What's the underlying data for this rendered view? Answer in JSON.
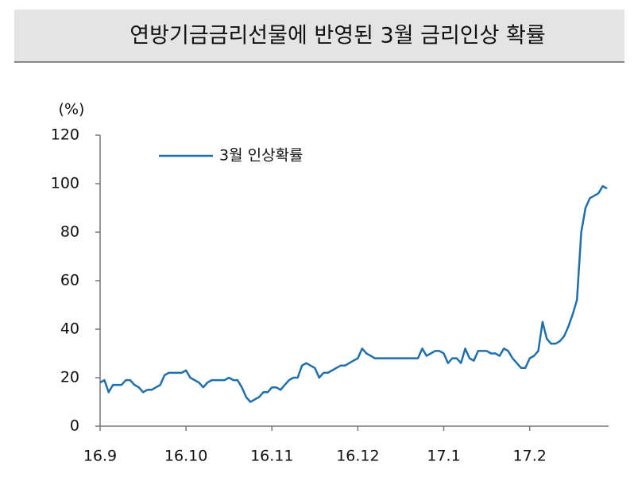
{
  "chart_data": {
    "type": "line",
    "title": "연방기금금리선물에 반영된 3월 금리인상 확률",
    "y_unit": "(%)",
    "categories": [
      "16.9",
      null,
      null,
      null,
      null,
      null,
      null,
      null,
      null,
      null,
      null,
      null,
      null,
      null,
      null,
      null,
      null,
      null,
      null,
      null,
      "16.10",
      null,
      null,
      null,
      null,
      null,
      null,
      null,
      null,
      null,
      null,
      null,
      null,
      null,
      null,
      null,
      null,
      null,
      null,
      null,
      "16.11",
      null,
      null,
      null,
      null,
      null,
      null,
      null,
      null,
      null,
      null,
      null,
      null,
      null,
      null,
      null,
      null,
      null,
      null,
      null,
      "16.12",
      null,
      null,
      null,
      null,
      null,
      null,
      null,
      null,
      null,
      null,
      null,
      null,
      null,
      null,
      null,
      null,
      null,
      null,
      null,
      "17.1",
      null,
      null,
      null,
      null,
      null,
      null,
      null,
      null,
      null,
      null,
      null,
      null,
      null,
      null,
      null,
      null,
      null,
      null,
      null,
      "17.2",
      null,
      null,
      null,
      null,
      null,
      null,
      null,
      null,
      null,
      null,
      null,
      null,
      null,
      null,
      null,
      null,
      null,
      null
    ],
    "series": [
      {
        "name": "3월 인상확률",
        "color": "#1f6fad",
        "values": [
          18,
          19,
          14,
          17,
          17,
          17,
          19,
          19,
          17,
          16,
          14,
          15,
          15,
          16,
          17,
          21,
          22,
          22,
          22,
          22,
          23,
          20,
          19,
          18,
          16,
          18,
          19,
          19,
          19,
          19,
          20,
          19,
          19,
          16,
          12,
          10,
          11,
          12,
          14,
          14,
          16,
          16,
          15,
          17,
          19,
          20,
          20,
          25,
          26,
          25,
          24,
          20,
          22,
          22,
          23,
          24,
          25,
          25,
          26,
          27,
          28,
          32,
          30,
          29,
          28,
          28,
          28,
          28,
          28,
          28,
          28,
          28,
          28,
          28,
          28,
          32,
          29,
          30,
          31,
          31,
          30,
          26,
          28,
          28,
          26,
          32,
          28,
          27,
          31,
          31,
          31,
          30,
          30,
          29,
          32,
          31,
          28,
          26,
          24,
          24,
          28,
          29,
          31,
          43,
          36,
          34,
          34,
          35,
          37,
          41,
          46,
          52,
          80,
          90,
          94,
          95,
          96,
          99,
          98
        ]
      }
    ],
    "ylim": [
      0,
      120
    ],
    "yticks": [
      0,
      20,
      40,
      60,
      80,
      100,
      120
    ]
  }
}
